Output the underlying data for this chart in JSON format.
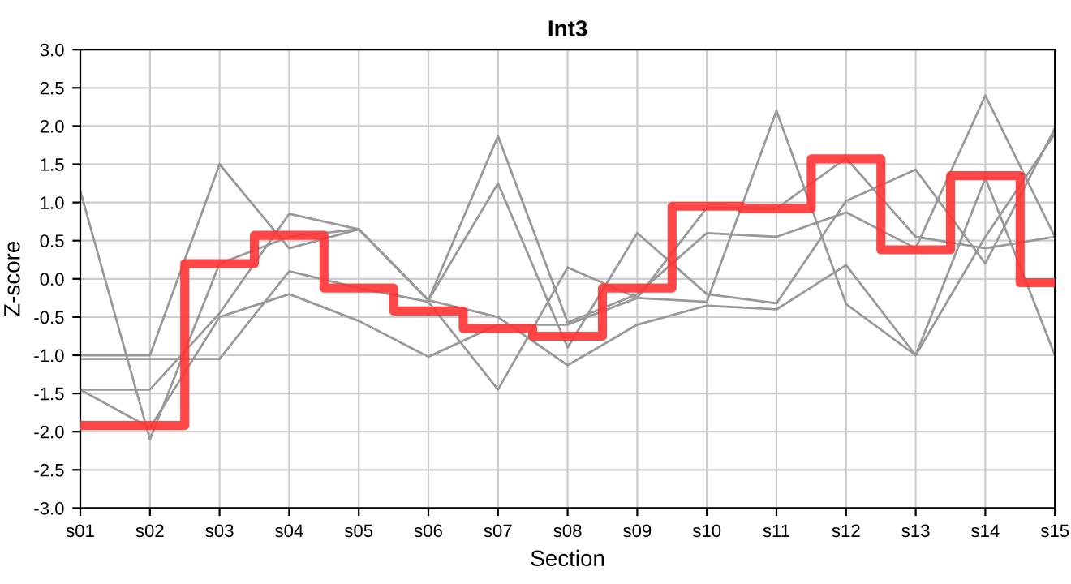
{
  "chart_data": {
    "type": "line",
    "title": "Int3",
    "xlabel": "Section",
    "ylabel": "Z-score",
    "categories": [
      "s01",
      "s02",
      "s03",
      "s04",
      "s05",
      "s06",
      "s07",
      "s08",
      "s09",
      "s10",
      "s11",
      "s12",
      "s13",
      "s14",
      "s15"
    ],
    "series": [
      {
        "color": "#999999",
        "values": [
          1.15,
          -2.1,
          0.2,
          0.55,
          0.65,
          -0.28,
          1.87,
          -0.57,
          -0.2,
          0.6,
          0.55,
          0.87,
          0.4,
          2.4,
          0.55
        ]
      },
      {
        "color": "#999999",
        "values": [
          -1.0,
          -1.0,
          1.5,
          0.4,
          0.65,
          -0.28,
          1.25,
          -0.9,
          0.6,
          -0.2,
          -0.32,
          1.02,
          1.43,
          0.2,
          1.97
        ]
      },
      {
        "color": "#999999",
        "values": [
          -1.05,
          -1.05,
          -1.05,
          0.1,
          -0.12,
          -0.3,
          -1.45,
          0.15,
          -0.25,
          -0.3,
          2.2,
          -0.33,
          -1.0,
          1.32,
          -1.0
        ]
      },
      {
        "color": "#999999",
        "values": [
          -1.45,
          -1.45,
          -0.45,
          0.85,
          0.65,
          -0.28,
          -0.5,
          -1.13,
          -0.6,
          -0.35,
          -0.4,
          0.18,
          -1.0,
          0.55,
          1.9
        ]
      },
      {
        "color": "#999999",
        "values": [
          -1.45,
          -1.95,
          -0.5,
          -0.2,
          -0.55,
          -1.02,
          -0.6,
          -0.6,
          -0.25,
          0.93,
          0.92,
          1.58,
          0.55,
          0.4,
          0.55
        ]
      },
      {
        "type": "step",
        "color": "#ff3333",
        "values": [
          -1.92,
          -1.92,
          0.2,
          0.57,
          -0.12,
          -0.42,
          -0.65,
          -0.75,
          -0.12,
          0.95,
          0.92,
          1.57,
          0.38,
          1.35,
          -0.05
        ]
      }
    ],
    "ylim": [
      -3.0,
      3.0
    ],
    "yticks": [
      {
        "value": -3,
        "label": "-3.0"
      },
      -2.5,
      {
        "value": -2,
        "label": "-2.0"
      },
      -1.5,
      {
        "value": -1,
        "label": "-1.0"
      },
      -0.5,
      {
        "value": 0,
        "label": "0.0"
      },
      0.5,
      {
        "value": 1,
        "label": "1.0"
      },
      1.5,
      {
        "value": 2,
        "label": "2.0"
      },
      2.5,
      {
        "value": 3,
        "label": "3.0"
      }
    ],
    "grid": true,
    "marker": "none",
    "line_style": "solid"
  }
}
